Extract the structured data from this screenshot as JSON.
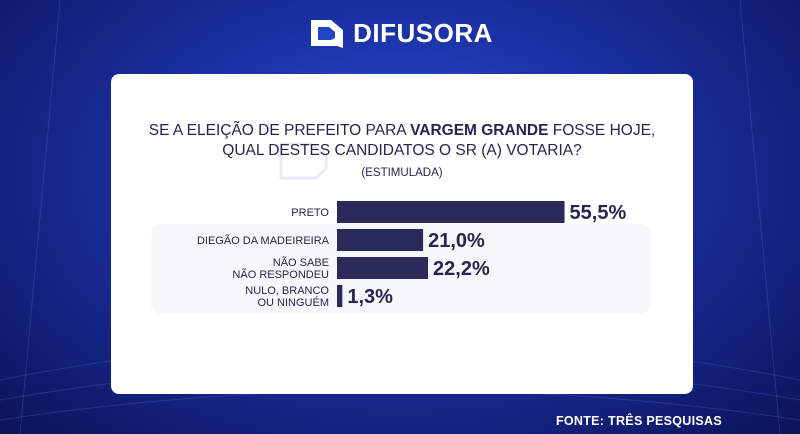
{
  "header": {
    "brand": "DIFUSORA",
    "logo_icon": "difusora-logo-icon"
  },
  "card": {
    "question_line1_pre": "SE A ELEIÇÃO DE PREFEITO PARA ",
    "question_line1_bold": "VARGEM GRANDE",
    "question_line1_post": " FOSSE HOJE,",
    "question_line2": "QUAL DESTES CANDIDATOS O SR (A) VOTARIA?",
    "subtitle": "(ESTIMULADA)"
  },
  "footer": {
    "source": "FONTE: TRÊS PESQUISAS"
  },
  "colors": {
    "bar": "#29295a",
    "text": "#25254f"
  },
  "chart_data": {
    "type": "bar",
    "orientation": "horizontal",
    "categories": [
      [
        "PRETO"
      ],
      [
        "DIEGÃO DA MADEIREIRA"
      ],
      [
        "NÃO SABE",
        "NÃO RESPONDEU"
      ],
      [
        "NULO, BRANCO",
        "OU NINGUÉM"
      ]
    ],
    "values": [
      55.5,
      21.0,
      22.2,
      1.3
    ],
    "value_labels": [
      "55,5%",
      "21,0%",
      "22,2%",
      "1,3%"
    ],
    "unit": "%"
  }
}
